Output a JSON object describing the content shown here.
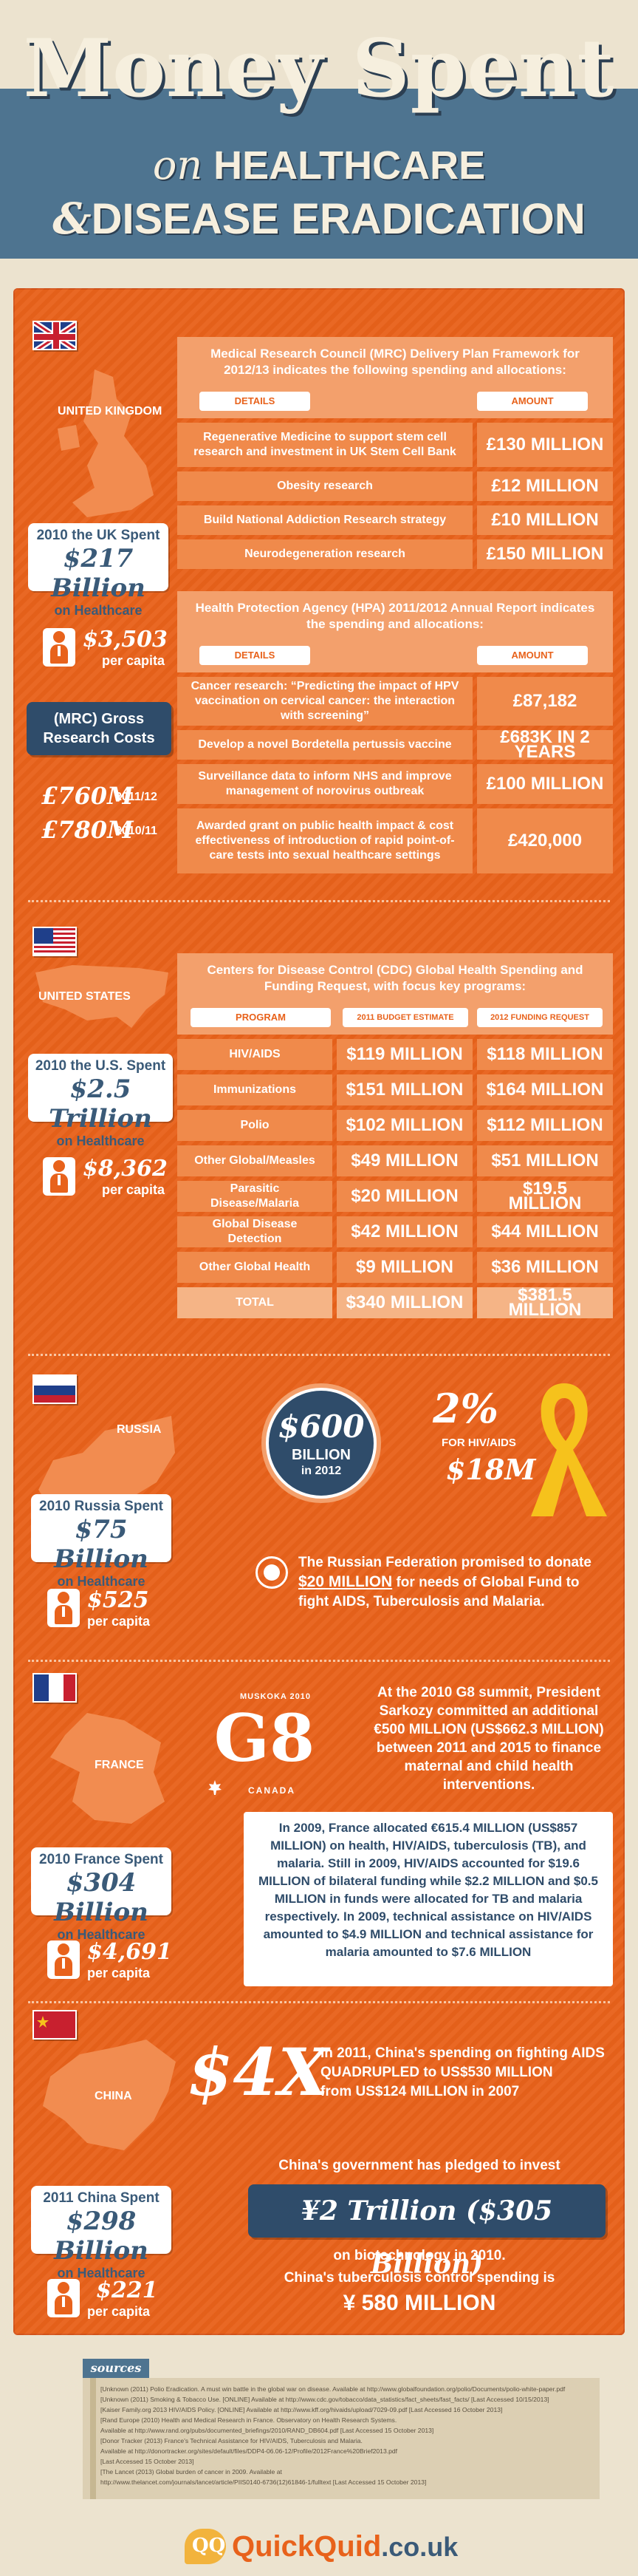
{
  "header": {
    "title": "Money Spent",
    "sub1_on": "on",
    "sub1_rest": "HEALTHCARE",
    "sub2_amp": "&",
    "sub2_rest": "DISEASE ERADICATION"
  },
  "uk": {
    "map_label": "UNITED KINGDOM",
    "spent_l1": "2010 the UK Spent",
    "spent_l2": "$217 Billion",
    "spent_l3": "on Healthcare",
    "percap_val": "$3,503",
    "percap_lbl": "per capita",
    "mrc_intro": "Medical Research Council (MRC) Delivery Plan Framework for 2012/13 indicates the following spending and allocations:",
    "hdr_details": "DETAILS",
    "hdr_amount": "AMOUNT",
    "mrc_rows": [
      {
        "d": "Regenerative Medicine to support stem cell research and investment in UK Stem Cell Bank",
        "a": "£130 MILLION"
      },
      {
        "d": "Obesity research",
        "a": "£12 MILLION"
      },
      {
        "d": "Build National Addiction Research strategy",
        "a": "£10 MILLION"
      },
      {
        "d": "Neurodegeneration research",
        "a": "£150 MILLION"
      }
    ],
    "hpa_intro": "Health Protection Agency (HPA) 2011/2012 Annual Report indicates the spending and allocations:",
    "hpa_rows": [
      {
        "d": "Cancer research: “Predicting the impact of HPV vaccination on cervical cancer: the interaction with screening”",
        "a": "£87,182"
      },
      {
        "d": "Develop a novel Bordetella pertussis vaccine",
        "a": "£683K IN 2 YEARS"
      },
      {
        "d": "Surveillance data to inform NHS and improve management of norovirus outbreak",
        "a": "£100 MILLION"
      },
      {
        "d": "Awarded grant on public health impact & cost effectiveness of introduction of rapid point-of-care tests into sexual healthcare settings",
        "a": "£420,000"
      }
    ],
    "mrc_gross_label": "(MRC) Gross Research Costs",
    "gross_1_val": "£760M",
    "gross_1_yr": "2011/12",
    "gross_2_val": "£780M",
    "gross_2_yr": "2010/11"
  },
  "us": {
    "map_label": "UNITED STATES",
    "spent_l1": "2010 the U.S. Spent",
    "spent_l2": "$2.5 Trillion",
    "spent_l3": "on Healthcare",
    "percap_val": "$8,362",
    "percap_lbl": "per capita",
    "intro": "Centers for Disease Control (CDC) Global Health Spending and Funding Request, with focus key programs:",
    "hdr_program": "PROGRAM",
    "hdr_2011": "2011 BUDGET ESTIMATE",
    "hdr_2012": "2012 FUNDING REQUEST",
    "rows": [
      {
        "p": "HIV/AIDS",
        "a": "$119 MILLION",
        "b": "$118 MILLION"
      },
      {
        "p": "Immunizations",
        "a": "$151 MILLION",
        "b": "$164 MILLION"
      },
      {
        "p": "Polio",
        "a": "$102 MILLION",
        "b": "$112 MILLION"
      },
      {
        "p": "Other Global/Measles",
        "a": "$49 MILLION",
        "b": "$51 MILLION"
      },
      {
        "p": "Parasitic Disease/Malaria",
        "a": "$20 MILLION",
        "b": "$19.5 MILLION"
      },
      {
        "p": "Global Disease Detection",
        "a": "$42 MILLION",
        "b": "$44 MILLION"
      },
      {
        "p": "Other Global Health",
        "a": "$9 MILLION",
        "b": "$36 MILLION"
      },
      {
        "p": "TOTAL",
        "a": "$340 MILLION",
        "b": "$381.5 MILLION"
      }
    ]
  },
  "russia": {
    "map_label": "RUSSIA",
    "spent_l1": "2010 Russia Spent",
    "spent_l2": "$75 Billion",
    "spent_l3": "on Healthcare",
    "percap_val": "$525",
    "percap_lbl": "per capita",
    "circle_l1": "$600",
    "circle_l2": "BILLION",
    "circle_l3": "in 2012",
    "pct": "2%",
    "pct_for": "FOR HIV/AIDS",
    "pct_val": "$18M",
    "fund_text_1": "The Russian Federation promised to donate",
    "fund_text_2": "$20 MILLION",
    "fund_text_3": "for needs of Global Fund to fight AIDS, Tuberculosis and Malaria."
  },
  "france": {
    "map_label": "FRANCE",
    "spent_l1": "2010 France Spent",
    "spent_l2": "$304 Billion",
    "spent_l3": "on Healthcare",
    "percap_val": "$4,691",
    "percap_lbl": "per capita",
    "g8_top": "MUSKOKA 2010",
    "g8_main": "G8",
    "g8_country": "CANADA",
    "g8_text": "At the 2010 G8 summit, President Sarkozy committed an additional €500 MILLION (US$662.3 MILLION) between 2011 and 2015 to finance maternal and child health interventions.",
    "box_text": "In 2009, France allocated €615.4 MILLION (US$857 MILLION) on health, HIV/AIDS, tuberculosis (TB), and malaria. Still in 2009, HIV/AIDS accounted for $19.6 MILLION of bilateral funding while $2.2 MILLION and $0.5 MILLION in funds were allocated for TB and malaria respectively. In 2009, technical assistance on HIV/AIDS amounted to $4.9 MILLION and technical assistance for malaria amounted to $7.6 MILLION"
  },
  "china": {
    "map_label": "CHINA",
    "spent_l1": "2011 China Spent",
    "spent_l2": "$298 Billion",
    "spent_l3": "on Healthcare",
    "percap_val": "$221",
    "percap_lbl": "per capita",
    "big": "$4X",
    "aids_text_1": "In 2011, China's spending on fighting AIDS",
    "aids_text_2": "QUADRUPLED to US$530 MILLION",
    "aids_text_3": "from US$124 MILLION in 2007",
    "pledge": "China's government has pledged to invest",
    "pledge_val": "¥2 Trillion ($305 Billion)",
    "pledge_on": "on biotechnology in 2010.",
    "tb_text": "China's tuberculosis control spending is",
    "tb_val": "¥ 580 MILLION"
  },
  "sources": {
    "label": "sources",
    "lines": [
      "[Unknown (2011) Polio Eradication. A must win battle in the global war on disease. Available at http://www.globalfoundation.org/polio/Documents/polio-white-paper.pdf",
      "[Unknown (2011) Smoking & Tobacco Use. [ONLINE] Available at http://www.cdc.gov/tobacco/data_statistics/fact_sheets/fast_facts/ [Last Accessed 10/15/2013]",
      "[Kaiser Family.org 2013 HIV/AIDS Policy. [ONLINE] Available at http://www.kff.org/hivaids/upload/7029-09.pdf [Last Accessed 16 October 2013]",
      "[Rand Europe (2010) Health and Medical Research in France. Observatory on Health Research Systems.",
      "Available at http://www.rand.org/pubs/documented_briefings/2010/RAND_DB604.pdf [Last Accessed 15 October 2013]",
      "[Donor Tracker (2013) France's Technical Assistance for HIV/AIDS, Tuberculosis and Malaria.",
      "Available at http://donortracker.org/sites/default/files/DDP4-06.06-12/Profile/2012France%20Brief2013.pdf",
      "[Last Accessed 15 October 2013]",
      "[The Lancet (2013) Global burden of cancer in 2009. Available at",
      "http://www.thelancet.com/journals/lancet/article/PIIS0140-6736(12)61846-1/fulltext [Last Accessed 15 October 2013]"
    ]
  },
  "logo": {
    "brand": "QuickQuid",
    "domain": ".co.uk"
  },
  "colors": {
    "orange": "#e8621b",
    "navy": "#2f4c6a",
    "steel_blue": "#4e7490",
    "cream": "#ece3cf"
  }
}
